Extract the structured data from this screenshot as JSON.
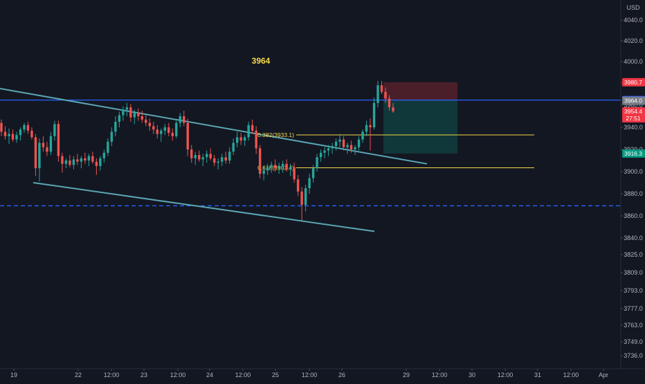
{
  "chart_data": {
    "type": "candlestick",
    "currency_label": "USD",
    "annotation": "3964",
    "y_ticks": [
      3736.0,
      3749.0,
      3763.0,
      3777.0,
      3793.0,
      3809.0,
      3825.0,
      3840.0,
      3860.0,
      3880.0,
      3900.0,
      3920.0,
      3940.0,
      3960.0,
      3980.0,
      4000.0,
      4020.0,
      4040.0
    ],
    "y_tick_labels": [
      "3736.0",
      "3749.0",
      "3763.0",
      "3777.0",
      "3793.0",
      "3809.0",
      "3825.0",
      "3840.0",
      "3860.0",
      "3880.0",
      "3900.0",
      "3920.0",
      "3940.0",
      "3960.0",
      "3980.0",
      "4000.0",
      "4020.0",
      "4040.0"
    ],
    "x_labels": [
      "19",
      "22",
      "12:00",
      "23",
      "12:00",
      "24",
      "12:00",
      "25",
      "12:00",
      "26",
      "29",
      "12:00",
      "30",
      "12:00",
      "31",
      "12:00",
      "Apr"
    ],
    "fib_levels": [
      {
        "label": "0.382(3933.1)",
        "value": 3933.1
      },
      {
        "label": "0.618(3903.4)",
        "value": 3903.4
      }
    ],
    "horizontal_lines": [
      {
        "label": "3964.6",
        "value": 3964.6,
        "style": "solid",
        "color": "#2962ff"
      },
      {
        "label": "3869.1",
        "value": 3869.1,
        "style": "dashed",
        "color": "#2962ff"
      }
    ],
    "price_tags": [
      {
        "label": "3980.7",
        "value": 3980.7,
        "color": "#f23645"
      },
      {
        "label": "3964.6",
        "value": 3964.6,
        "color": "#2962ff"
      },
      {
        "label": "3964.0",
        "value": 3964.0,
        "color": "#787b86"
      },
      {
        "label": "3954.4",
        "value": 3954.4,
        "color": "#f23645",
        "sub": "27:51"
      },
      {
        "label": "3916.3",
        "value": 3916.3,
        "color": "#089981"
      }
    ],
    "position": {
      "entry": 3964.6,
      "stop": 3980.7,
      "target": 3916.3
    },
    "candles": [
      [
        3944,
        3947,
        3932,
        3936
      ],
      [
        3936,
        3941,
        3929,
        3932
      ],
      [
        3932,
        3939,
        3925,
        3934
      ],
      [
        3934,
        3938,
        3927,
        3929
      ],
      [
        3929,
        3936,
        3926,
        3933
      ],
      [
        3933,
        3940,
        3928,
        3938
      ],
      [
        3938,
        3944,
        3935,
        3942
      ],
      [
        3942,
        3945,
        3934,
        3937
      ],
      [
        3937,
        3940,
        3929,
        3931
      ],
      [
        3931,
        3934,
        3896,
        3903
      ],
      [
        3903,
        3930,
        3891,
        3926
      ],
      [
        3926,
        3932,
        3918,
        3922
      ],
      [
        3922,
        3927,
        3914,
        3918
      ],
      [
        3918,
        3936,
        3915,
        3932
      ],
      [
        3932,
        3946,
        3928,
        3943
      ],
      [
        3943,
        3946,
        3909,
        3914
      ],
      [
        3914,
        3917,
        3899,
        3907
      ],
      [
        3907,
        3912,
        3903,
        3910
      ],
      [
        3910,
        3915,
        3904,
        3906
      ],
      [
        3906,
        3914,
        3902,
        3911
      ],
      [
        3911,
        3916,
        3906,
        3909
      ],
      [
        3909,
        3914,
        3903,
        3912
      ],
      [
        3912,
        3917,
        3907,
        3910
      ],
      [
        3910,
        3916,
        3905,
        3914
      ],
      [
        3914,
        3918,
        3907,
        3909
      ],
      [
        3909,
        3912,
        3897,
        3905
      ],
      [
        3905,
        3914,
        3901,
        3912
      ],
      [
        3912,
        3920,
        3908,
        3917
      ],
      [
        3917,
        3930,
        3914,
        3927
      ],
      [
        3927,
        3940,
        3923,
        3936
      ],
      [
        3936,
        3950,
        3932,
        3945
      ],
      [
        3945,
        3954,
        3940,
        3951
      ],
      [
        3951,
        3959,
        3946,
        3956
      ],
      [
        3956,
        3962,
        3950,
        3958
      ],
      [
        3958,
        3961,
        3945,
        3949
      ],
      [
        3949,
        3956,
        3943,
        3953
      ],
      [
        3953,
        3957,
        3946,
        3950
      ],
      [
        3950,
        3955,
        3944,
        3947
      ],
      [
        3947,
        3951,
        3941,
        3944
      ],
      [
        3944,
        3948,
        3937,
        3941
      ],
      [
        3941,
        3945,
        3934,
        3938
      ],
      [
        3938,
        3942,
        3930,
        3934
      ],
      [
        3934,
        3939,
        3927,
        3937
      ],
      [
        3937,
        3943,
        3933,
        3940
      ],
      [
        3940,
        3944,
        3932,
        3935
      ],
      [
        3935,
        3939,
        3928,
        3932
      ],
      [
        3932,
        3946,
        3930,
        3944
      ],
      [
        3944,
        3953,
        3940,
        3950
      ],
      [
        3950,
        3955,
        3941,
        3944
      ],
      [
        3944,
        3948,
        3914,
        3920
      ],
      [
        3920,
        3924,
        3908,
        3912
      ],
      [
        3912,
        3918,
        3906,
        3915
      ],
      [
        3915,
        3919,
        3909,
        3911
      ],
      [
        3911,
        3916,
        3905,
        3913
      ],
      [
        3913,
        3919,
        3908,
        3916
      ],
      [
        3916,
        3921,
        3910,
        3912
      ],
      [
        3912,
        3915,
        3905,
        3908
      ],
      [
        3908,
        3912,
        3902,
        3909
      ],
      [
        3909,
        3916,
        3905,
        3913
      ],
      [
        3913,
        3918,
        3907,
        3910
      ],
      [
        3910,
        3922,
        3907,
        3918
      ],
      [
        3918,
        3930,
        3915,
        3926
      ],
      [
        3926,
        3936,
        3922,
        3931
      ],
      [
        3931,
        3935,
        3924,
        3928
      ],
      [
        3928,
        3933,
        3923,
        3931
      ],
      [
        3931,
        3945,
        3928,
        3942
      ],
      [
        3942,
        3947,
        3934,
        3937
      ],
      [
        3937,
        3941,
        3916,
        3921
      ],
      [
        3921,
        3924,
        3894,
        3898
      ],
      [
        3898,
        3905,
        3892,
        3901
      ],
      [
        3901,
        3907,
        3897,
        3904
      ],
      [
        3904,
        3909,
        3899,
        3906
      ],
      [
        3906,
        3911,
        3900,
        3903
      ],
      [
        3903,
        3908,
        3898,
        3905
      ],
      [
        3905,
        3910,
        3899,
        3907
      ],
      [
        3907,
        3911,
        3900,
        3902
      ],
      [
        3902,
        3907,
        3896,
        3904
      ],
      [
        3904,
        3908,
        3890,
        3893
      ],
      [
        3893,
        3897,
        3878,
        3882
      ],
      [
        3882,
        3886,
        3856,
        3870
      ],
      [
        3870,
        3888,
        3864,
        3885
      ],
      [
        3885,
        3898,
        3880,
        3894
      ],
      [
        3894,
        3906,
        3890,
        3903
      ],
      [
        3903,
        3916,
        3900,
        3913
      ],
      [
        3913,
        3920,
        3909,
        3917
      ],
      [
        3917,
        3922,
        3912,
        3919
      ],
      [
        3919,
        3924,
        3914,
        3921
      ],
      [
        3921,
        3926,
        3916,
        3923
      ],
      [
        3923,
        3930,
        3919,
        3927
      ],
      [
        3927,
        3934,
        3922,
        3929
      ],
      [
        3929,
        3932,
        3919,
        3922
      ],
      [
        3922,
        3926,
        3916,
        3924
      ],
      [
        3924,
        3928,
        3917,
        3920
      ],
      [
        3920,
        3924,
        3915,
        3922
      ],
      [
        3922,
        3932,
        3919,
        3929
      ],
      [
        3929,
        3938,
        3926,
        3936
      ],
      [
        3936,
        3946,
        3932,
        3942
      ],
      [
        3942,
        3948,
        3919,
        3940
      ],
      [
        3940,
        3967,
        3938,
        3962
      ],
      [
        3962,
        3982,
        3958,
        3978
      ],
      [
        3978,
        3982,
        3970,
        3972
      ],
      [
        3972,
        3976,
        3962,
        3966
      ],
      [
        3966,
        3969,
        3955,
        3958
      ],
      [
        3958,
        3962,
        3953,
        3954.4
      ]
    ]
  }
}
